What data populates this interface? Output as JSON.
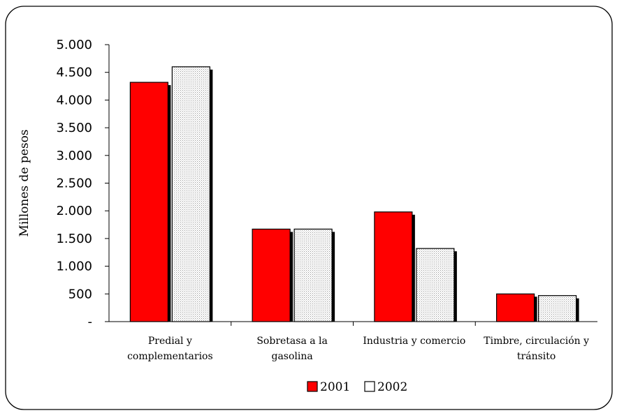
{
  "chart_data": {
    "type": "bar",
    "categories": [
      [
        "Predial y",
        "complementarios"
      ],
      [
        "Sobretasa a la",
        "gasolina"
      ],
      [
        "Industria y comercio"
      ],
      [
        "Timbre, circulación y",
        "tránsito"
      ]
    ],
    "series": [
      {
        "name": "2001",
        "values": [
          4320,
          1670,
          1980,
          500
        ],
        "color": "#ff0000"
      },
      {
        "name": "2002",
        "values": [
          4600,
          1670,
          1320,
          470
        ],
        "color": "#e8e8e8"
      }
    ],
    "ylabel": "Millones de pesos",
    "ylim": [
      0,
      5000
    ],
    "yticks": [
      {
        "value": 0,
        "label": "-"
      },
      {
        "value": 500,
        "label": "500"
      },
      {
        "value": 1000,
        "label": "1.000"
      },
      {
        "value": 1500,
        "label": "1.500"
      },
      {
        "value": 2000,
        "label": "2.000"
      },
      {
        "value": 2500,
        "label": "2.500"
      },
      {
        "value": 3000,
        "label": "3.000"
      },
      {
        "value": 3500,
        "label": "3.500"
      },
      {
        "value": 4000,
        "label": "4.000"
      },
      {
        "value": 4500,
        "label": "4.500"
      },
      {
        "value": 5000,
        "label": "5.000"
      }
    ],
    "grid": false,
    "legend_position": "bottom"
  }
}
